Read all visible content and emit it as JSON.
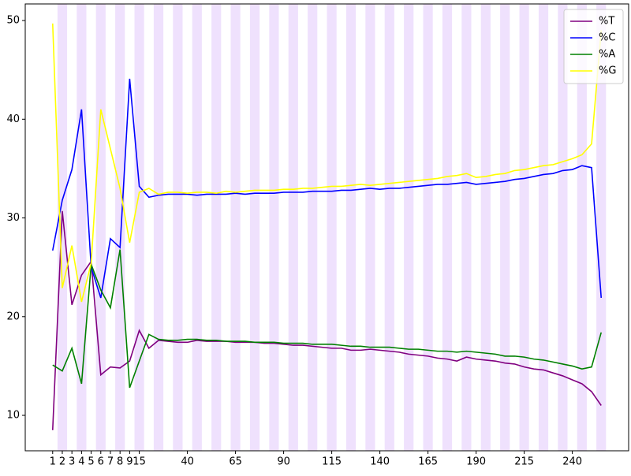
{
  "chart_data": {
    "type": "line",
    "categories": [
      "1",
      "2",
      "3",
      "4",
      "5",
      "6",
      "7",
      "8",
      "9",
      "15",
      null,
      null,
      null,
      null,
      "40",
      null,
      null,
      null,
      null,
      "65",
      null,
      null,
      null,
      null,
      "90",
      null,
      null,
      null,
      null,
      "115",
      null,
      null,
      null,
      null,
      "140",
      null,
      null,
      null,
      null,
      "165",
      null,
      null,
      null,
      null,
      "190",
      null,
      null,
      null,
      null,
      "215",
      null,
      null,
      null,
      null,
      "240",
      null,
      null,
      null
    ],
    "series": [
      {
        "name": "%T",
        "color": "#800080",
        "values": [
          8.5,
          30.7,
          21.2,
          24.2,
          25.6,
          14.1,
          14.9,
          14.8,
          15.5,
          18.6,
          16.8,
          17.6,
          17.5,
          17.4,
          17.4,
          17.6,
          17.5,
          17.5,
          17.5,
          17.4,
          17.4,
          17.4,
          17.3,
          17.3,
          17.2,
          17.1,
          17.1,
          17.0,
          16.9,
          16.8,
          16.8,
          16.6,
          16.6,
          16.7,
          16.6,
          16.5,
          16.4,
          16.2,
          16.1,
          16.0,
          15.8,
          15.7,
          15.5,
          15.9,
          15.7,
          15.6,
          15.5,
          15.3,
          15.2,
          14.9,
          14.7,
          14.6,
          14.3,
          14.0,
          13.6,
          13.2,
          12.4,
          11.0
        ]
      },
      {
        "name": "%C",
        "color": "#0000ff",
        "values": [
          26.7,
          31.8,
          34.9,
          41.0,
          25.0,
          21.9,
          27.9,
          27.0,
          44.1,
          33.2,
          32.1,
          32.3,
          32.4,
          32.4,
          32.4,
          32.3,
          32.4,
          32.4,
          32.4,
          32.5,
          32.4,
          32.5,
          32.5,
          32.5,
          32.6,
          32.6,
          32.6,
          32.7,
          32.7,
          32.7,
          32.8,
          32.8,
          32.9,
          33.0,
          32.9,
          33.0,
          33.0,
          33.1,
          33.2,
          33.3,
          33.4,
          33.4,
          33.5,
          33.6,
          33.4,
          33.5,
          33.6,
          33.7,
          33.9,
          34.0,
          34.2,
          34.4,
          34.5,
          34.8,
          34.9,
          35.3,
          35.1,
          21.9
        ]
      },
      {
        "name": "%A",
        "color": "#008000",
        "values": [
          15.1,
          14.5,
          16.8,
          13.2,
          25.3,
          22.7,
          20.9,
          26.8,
          12.8,
          15.5,
          18.2,
          17.7,
          17.6,
          17.6,
          17.7,
          17.7,
          17.6,
          17.6,
          17.5,
          17.5,
          17.5,
          17.4,
          17.4,
          17.4,
          17.3,
          17.3,
          17.3,
          17.2,
          17.2,
          17.2,
          17.1,
          17.0,
          17.0,
          16.9,
          16.9,
          16.9,
          16.8,
          16.7,
          16.7,
          16.6,
          16.5,
          16.5,
          16.4,
          16.5,
          16.4,
          16.3,
          16.2,
          16.0,
          16.0,
          15.9,
          15.7,
          15.6,
          15.4,
          15.2,
          15.0,
          14.7,
          14.9,
          18.4
        ]
      },
      {
        "name": "%G",
        "color": "#ffff00",
        "values": [
          49.7,
          22.9,
          27.2,
          21.5,
          25.4,
          41.0,
          37.0,
          33.0,
          27.5,
          32.6,
          33.0,
          32.4,
          32.6,
          32.6,
          32.5,
          32.6,
          32.6,
          32.5,
          32.7,
          32.6,
          32.7,
          32.8,
          32.8,
          32.8,
          32.9,
          32.9,
          33.0,
          33.0,
          33.1,
          33.2,
          33.2,
          33.3,
          33.4,
          33.3,
          33.4,
          33.5,
          33.6,
          33.7,
          33.8,
          33.9,
          34.0,
          34.2,
          34.3,
          34.5,
          34.1,
          34.2,
          34.4,
          34.5,
          34.8,
          34.9,
          35.1,
          35.3,
          35.4,
          35.7,
          36.0,
          36.4,
          37.5,
          49.0
        ]
      }
    ],
    "ylim": [
      6.41,
      51.68
    ],
    "yticks": [
      10,
      20,
      30,
      40,
      50
    ],
    "grid": false,
    "legend": "upper right"
  }
}
